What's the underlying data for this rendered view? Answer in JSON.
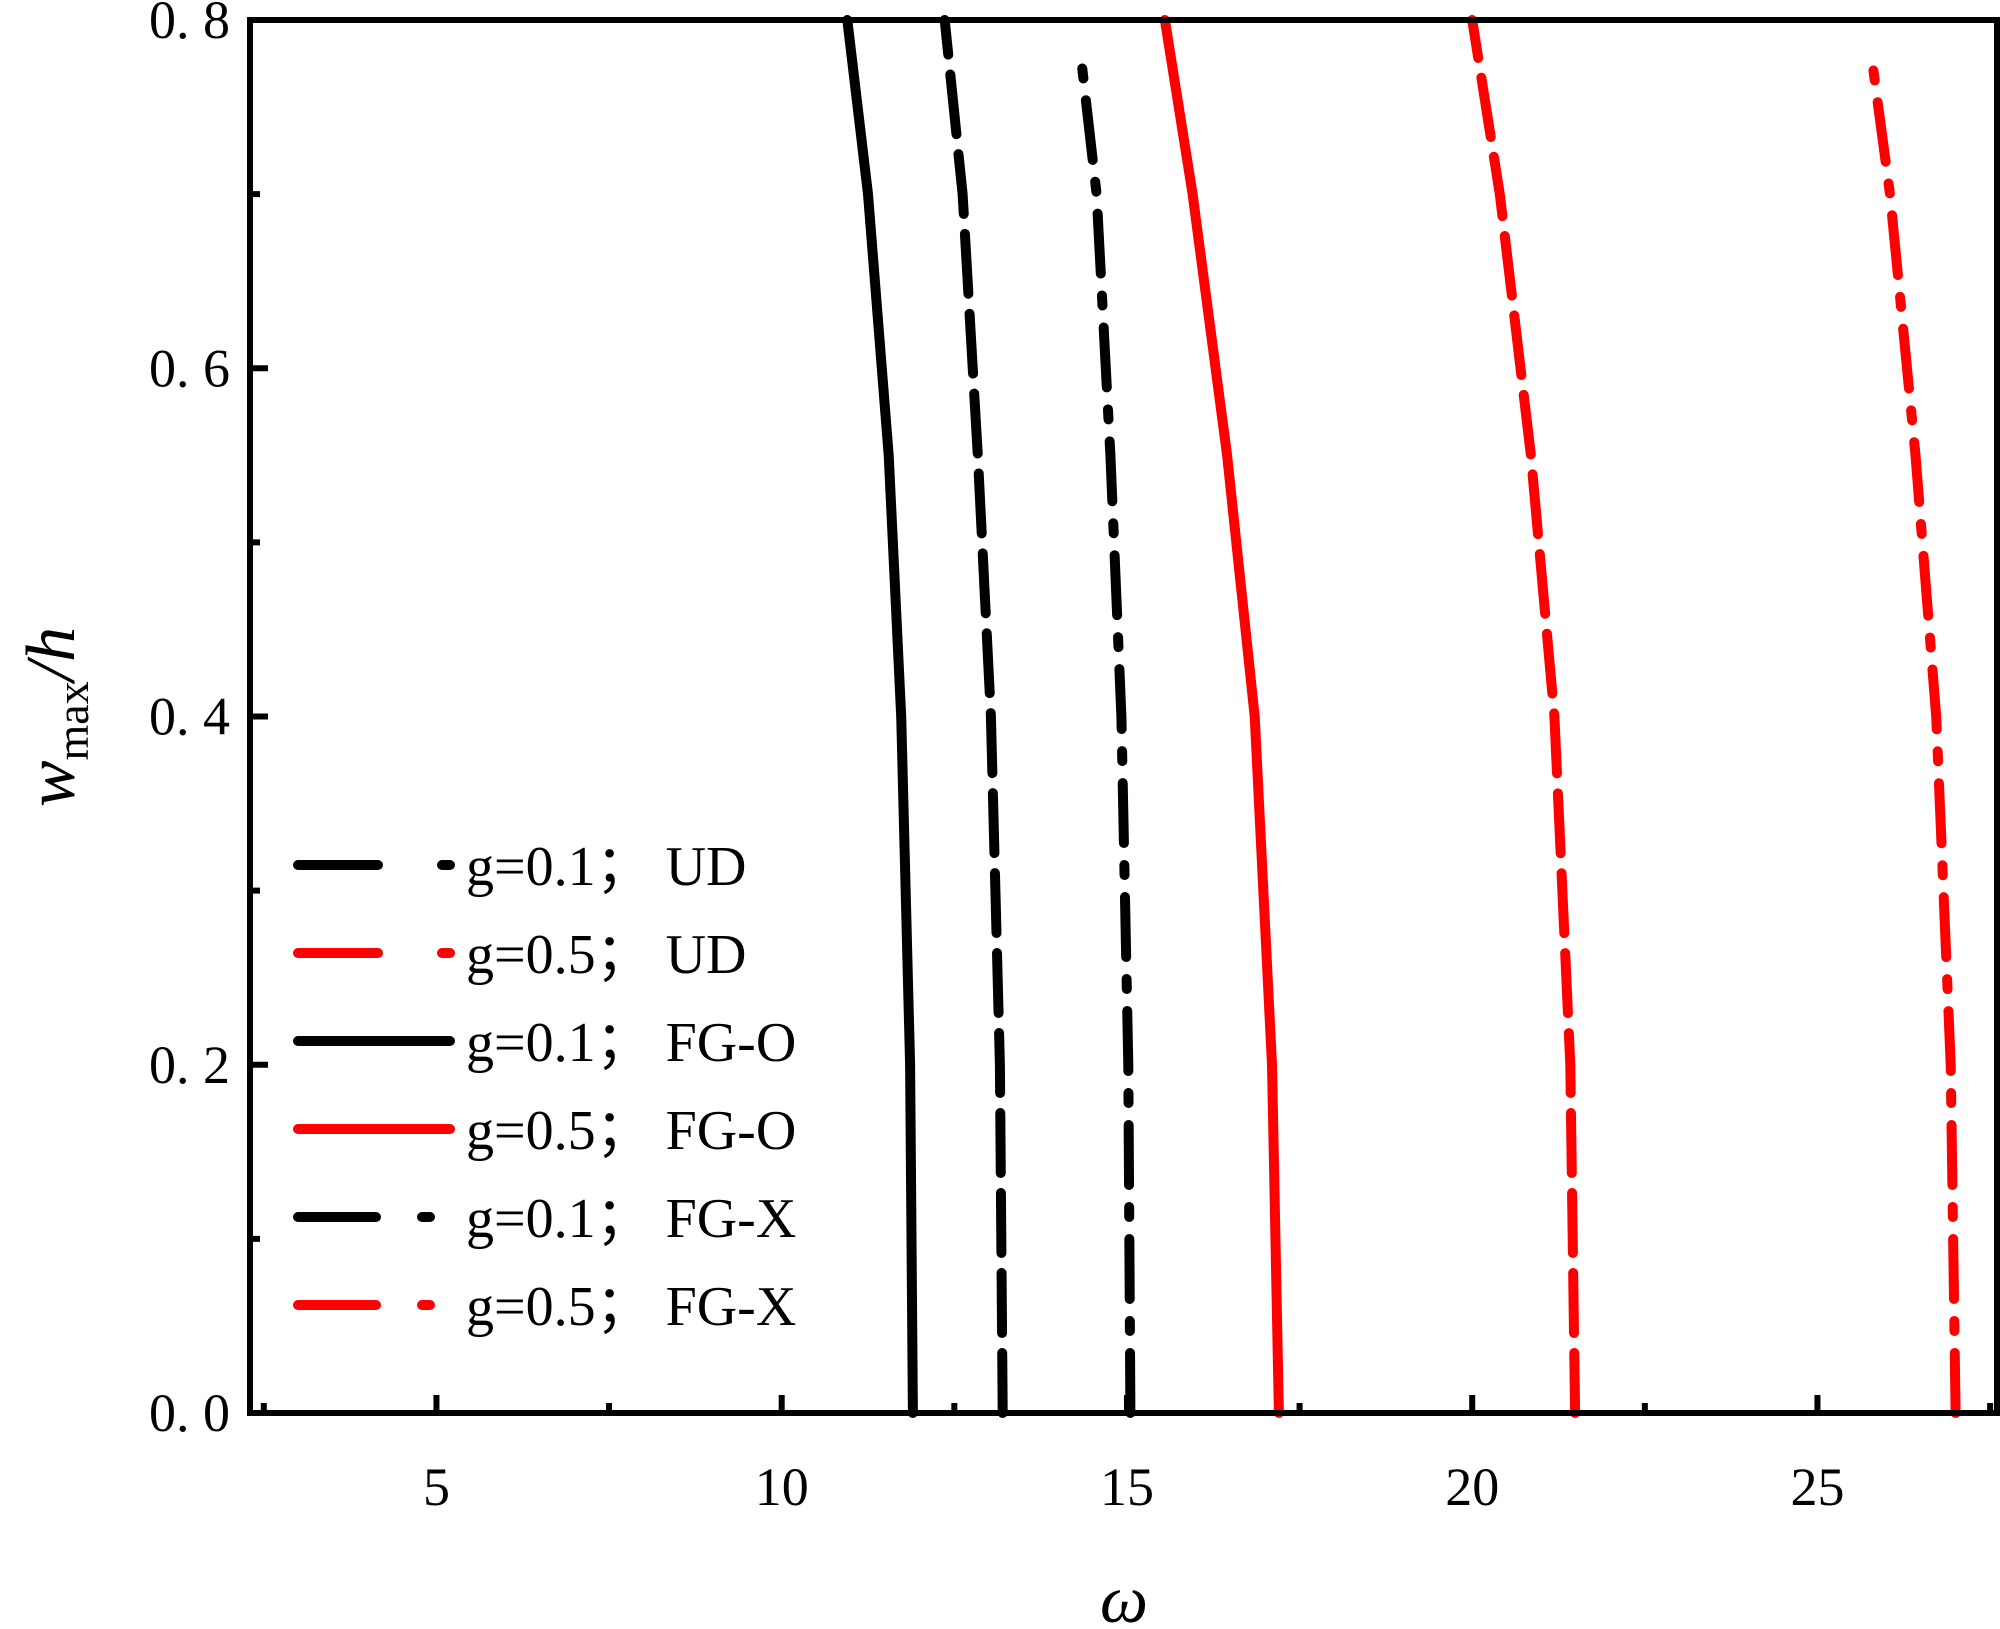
{
  "chart_data": {
    "type": "line",
    "title": "",
    "xlabel": "ω",
    "ylabel": {
      "base": "w",
      "subscript": "max",
      "suffix": "/h"
    },
    "xlim": [
      2.3,
      27.6
    ],
    "ylim": [
      0,
      0.8
    ],
    "x_ticks": [
      5,
      10,
      15,
      20,
      25
    ],
    "x_tick_labels": [
      "5",
      "10",
      "15",
      "20",
      "25"
    ],
    "y_ticks": [
      0,
      0.2,
      0.4,
      0.6,
      0.8
    ],
    "y_tick_labels": [
      "0. 0",
      "0. 2",
      "0. 4",
      "0. 6",
      "0. 8"
    ],
    "grid": false,
    "legend_position": "bottom-left",
    "series": [
      {
        "name": "g=0.1；  UD",
        "color": "#000000",
        "dash": "dashed",
        "x": [
          13.2,
          13.16,
          13.03,
          12.84,
          12.62,
          12.36
        ],
        "y": [
          0.0,
          0.2,
          0.4,
          0.55,
          0.7,
          0.8
        ]
      },
      {
        "name": "g=0.5；  UD",
        "color": "#ff0000",
        "dash": "dashed",
        "x": [
          21.49,
          21.42,
          21.19,
          20.85,
          20.4,
          20.0
        ],
        "y": [
          0.0,
          0.2,
          0.4,
          0.55,
          0.7,
          0.8
        ]
      },
      {
        "name": "g=0.1；  FG-O",
        "color": "#000000",
        "dash": "solid",
        "x": [
          11.9,
          11.86,
          11.73,
          11.55,
          11.25,
          10.95
        ],
        "y": [
          0.0,
          0.2,
          0.4,
          0.55,
          0.7,
          0.8
        ]
      },
      {
        "name": "g=0.5；  FG-O",
        "color": "#ff0000",
        "dash": "solid",
        "x": [
          17.2,
          17.1,
          16.85,
          16.45,
          15.95,
          15.55
        ],
        "y": [
          0.0,
          0.2,
          0.4,
          0.55,
          0.7,
          0.8
        ]
      },
      {
        "name": "g=0.1；  FG-X",
        "color": "#000000",
        "dash": "dashdot",
        "x": [
          15.05,
          15.02,
          14.92,
          14.76,
          14.56,
          14.33
        ],
        "y": [
          0.0,
          0.2,
          0.4,
          0.55,
          0.7,
          0.78
        ]
      },
      {
        "name": "g=0.5；  FG-X",
        "color": "#ff0000",
        "dash": "dashdot",
        "x": [
          27.0,
          26.93,
          26.72,
          26.42,
          26.05,
          25.78
        ],
        "y": [
          0.0,
          0.2,
          0.4,
          0.55,
          0.7,
          0.78
        ]
      }
    ]
  }
}
